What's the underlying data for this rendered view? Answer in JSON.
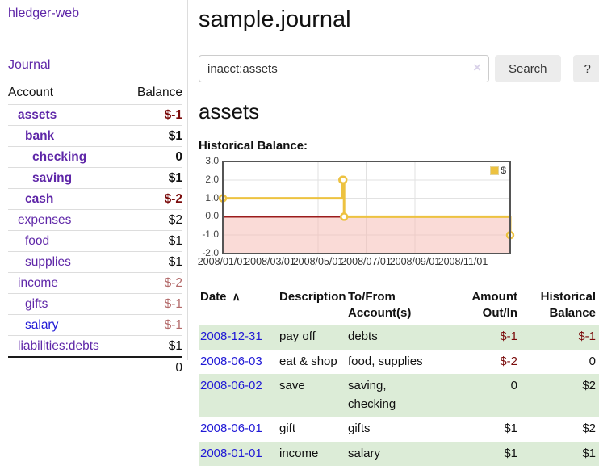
{
  "colors": {
    "link-purple": "#5f27a8",
    "link-blue": "#2019d6",
    "neg-strong": "#7b0c0c",
    "neg-muted": "#b36a6a",
    "row-green": "#dcecd7",
    "border-gray": "#dddddd",
    "button-bg": "#ececec",
    "chart-grid": "#e2e2e2",
    "chart-zero": "#9b1c1c",
    "chart-negative-fill": "#f5b8b0",
    "chart-border": "#555555"
  },
  "sidebar": {
    "app_title": "hledger-web",
    "journal_link": "Journal",
    "table": {
      "headers": [
        "Account",
        "Balance"
      ],
      "rows": [
        {
          "account": "assets",
          "level": 1,
          "bold": true,
          "link_color": "purple",
          "balance": "$-1",
          "balance_style": "neg-strong"
        },
        {
          "account": "bank",
          "level": 2,
          "bold": true,
          "link_color": "purple",
          "balance": "$1",
          "balance_style": "plain"
        },
        {
          "account": "checking",
          "level": 3,
          "bold": true,
          "link_color": "purple",
          "balance": "0",
          "balance_style": "plain"
        },
        {
          "account": "saving",
          "level": 3,
          "bold": true,
          "link_color": "purple",
          "balance": "$1",
          "balance_style": "plain"
        },
        {
          "account": "cash",
          "level": 2,
          "bold": true,
          "link_color": "purple",
          "balance": "$-2",
          "balance_style": "neg-strong"
        },
        {
          "account": "expenses",
          "level": 1,
          "bold": false,
          "link_color": "purple",
          "balance": "$2",
          "balance_style": "plain"
        },
        {
          "account": "food",
          "level": 2,
          "bold": false,
          "link_color": "purple",
          "balance": "$1",
          "balance_style": "plain"
        },
        {
          "account": "supplies",
          "level": 2,
          "bold": false,
          "link_color": "purple",
          "balance": "$1",
          "balance_style": "plain"
        },
        {
          "account": "income",
          "level": 1,
          "bold": false,
          "link_color": "purple",
          "balance": "$-2",
          "balance_style": "neg-muted"
        },
        {
          "account": "gifts",
          "level": 2,
          "bold": false,
          "link_color": "purple",
          "balance": "$-1",
          "balance_style": "neg-muted"
        },
        {
          "account": "salary",
          "level": 2,
          "bold": false,
          "link_color": "blue",
          "balance": "$-1",
          "balance_style": "neg-muted"
        },
        {
          "account": "liabilities:debts",
          "level": 1,
          "bold": false,
          "link_color": "purple",
          "balance": "$1",
          "balance_style": "plain"
        }
      ],
      "total": "0"
    }
  },
  "main": {
    "title": "sample.journal",
    "search": {
      "value": "inacct:assets",
      "clear_icon": "×",
      "search_button": "Search",
      "help_button": "?"
    },
    "account_heading": "assets"
  },
  "chart_data": {
    "type": "line",
    "subtype": "step",
    "title": "Historical Balance:",
    "xlim": [
      "2008-01-01",
      "2008-12-31"
    ],
    "ylim": [
      -2,
      3
    ],
    "y_ticks": [
      "3.0",
      "2.0",
      "1.0",
      "0.0",
      "-1.0",
      "-2.0"
    ],
    "x_ticks": [
      "2008/01/01",
      "2008/03/01",
      "2008/05/01",
      "2008/07/01",
      "2008/09/01",
      "2008/11/01"
    ],
    "grid": true,
    "legend_position": "top-right",
    "series": [
      {
        "name": "$",
        "color": "#edc240",
        "points": [
          [
            "2008-01-01",
            1
          ],
          [
            "2008-06-01",
            2
          ],
          [
            "2008-06-02",
            2
          ],
          [
            "2008-06-03",
            0
          ],
          [
            "2008-12-31",
            -1
          ]
        ]
      }
    ]
  },
  "register": {
    "sort_indicator": "∧",
    "headers": [
      {
        "line1": "Date",
        "line2": "",
        "align": "left",
        "sortable": true
      },
      {
        "line1": "Description",
        "line2": "",
        "align": "left",
        "sortable": false
      },
      {
        "line1": "To/From",
        "line2": "Account(s)",
        "align": "left",
        "sortable": false
      },
      {
        "line1": "Amount",
        "line2": "Out/In",
        "align": "right",
        "sortable": false
      },
      {
        "line1": "Historical",
        "line2": "Balance",
        "align": "right",
        "sortable": false
      }
    ],
    "rows": [
      {
        "date": "2008-12-31",
        "description": "pay off",
        "accounts": "debts",
        "amount": "$-1",
        "amount_negative": true,
        "balance": "$-1",
        "balance_negative": true
      },
      {
        "date": "2008-06-03",
        "description": "eat & shop",
        "accounts": "food, supplies",
        "amount": "$-2",
        "amount_negative": true,
        "balance": "0",
        "balance_negative": false
      },
      {
        "date": "2008-06-02",
        "description": "save",
        "accounts": "saving, checking",
        "amount": "0",
        "amount_negative": false,
        "balance": "$2",
        "balance_negative": false
      },
      {
        "date": "2008-06-01",
        "description": "gift",
        "accounts": "gifts",
        "amount": "$1",
        "amount_negative": false,
        "balance": "$2",
        "balance_negative": false
      },
      {
        "date": "2008-01-01",
        "description": "income",
        "accounts": "salary",
        "amount": "$1",
        "amount_negative": false,
        "balance": "$1",
        "balance_negative": false
      }
    ]
  }
}
